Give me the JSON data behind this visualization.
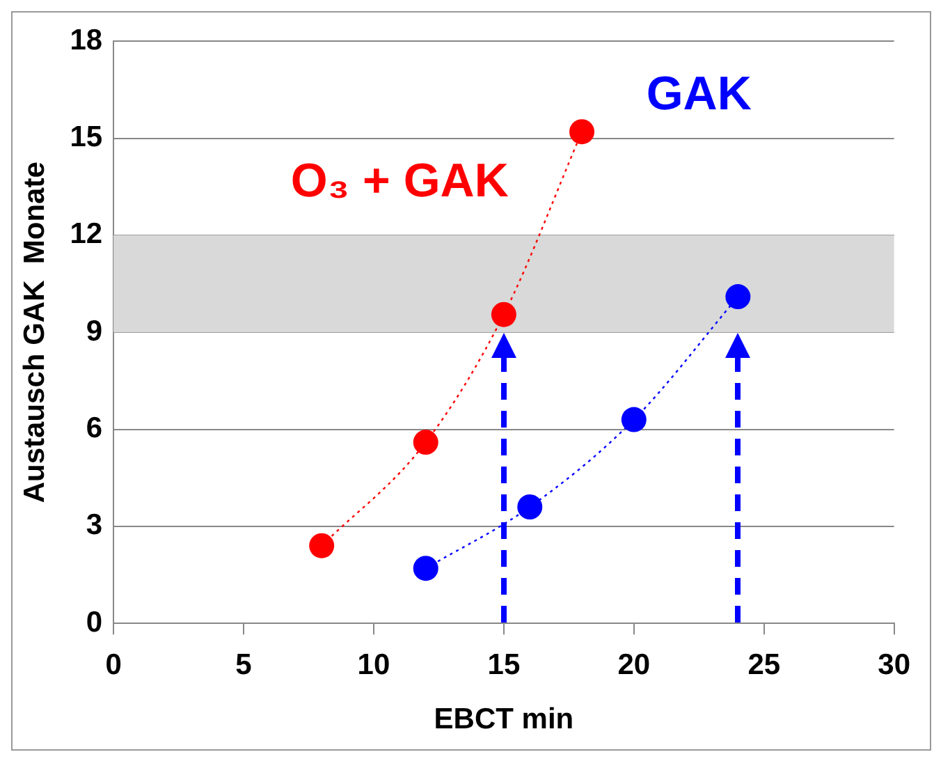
{
  "chart_data": {
    "type": "line",
    "xlabel": "EBCT min",
    "ylabel": "Austausch GAK  Monate",
    "series": [
      {
        "name": "O₃ + GAK",
        "color": "#ff0000",
        "x": [
          8,
          12,
          15,
          18
        ],
        "values": [
          2.4,
          5.6,
          9.55,
          15.2
        ]
      },
      {
        "name": "GAK",
        "color": "#0000ff",
        "x": [
          12,
          16,
          20,
          24
        ],
        "values": [
          1.7,
          3.6,
          6.3,
          10.1
        ]
      }
    ],
    "xlim": [
      0,
      30
    ],
    "xticks": [
      0,
      5,
      10,
      15,
      20,
      25,
      30
    ],
    "ylim": [
      0,
      18
    ],
    "yticks": [
      0,
      3,
      6,
      9,
      12,
      15,
      18
    ],
    "bands": [
      {
        "axis": "y",
        "from": 9,
        "to": 12,
        "color": "#d9d9d9"
      }
    ],
    "grid": "y",
    "legend": false,
    "marker": "circle",
    "line_style": "dotted"
  }
}
